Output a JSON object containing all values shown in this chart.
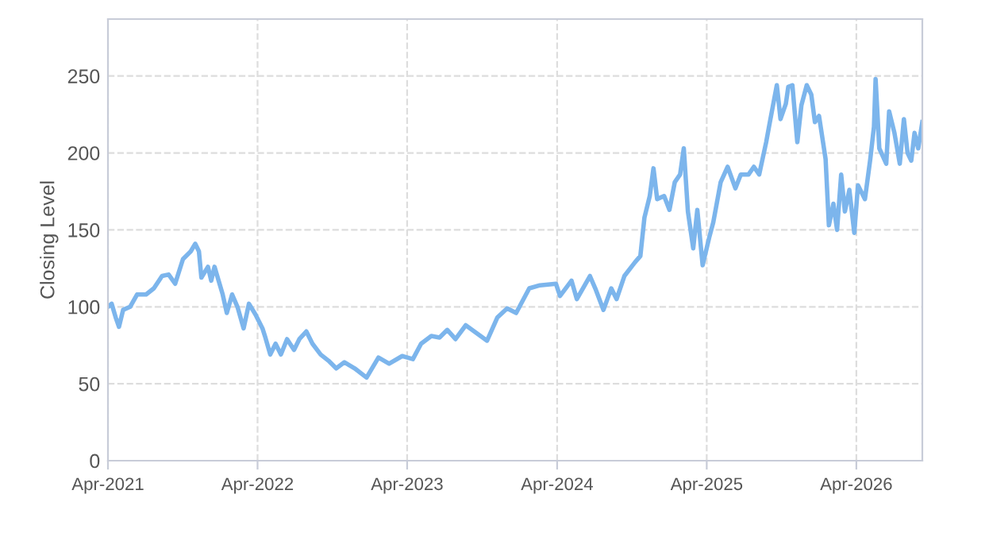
{
  "chart_data": {
    "type": "line",
    "ylabel": "Closing Level",
    "xlim": [
      "2021-04-01",
      "2026-09-09"
    ],
    "xticks": [
      {
        "value": "2021-04-01",
        "label": "Apr-2021"
      },
      {
        "value": "2022-04-01",
        "label": "Apr-2022"
      },
      {
        "value": "2023-04-01",
        "label": "Apr-2023"
      },
      {
        "value": "2024-04-01",
        "label": "Apr-2024"
      },
      {
        "value": "2025-04-01",
        "label": "Apr-2025"
      },
      {
        "value": "2026-04-01",
        "label": "Apr-2026"
      }
    ],
    "ylim": [
      0,
      287
    ],
    "yticks": [
      0,
      50,
      100,
      150,
      200,
      250
    ],
    "grid": true,
    "legend": false,
    "marker": "none",
    "line_style": "solid",
    "x": [
      "2021-04-01",
      "2021-04-10",
      "2021-04-20",
      "2021-04-28",
      "2021-05-08",
      "2021-05-25",
      "2021-06-11",
      "2021-07-03",
      "2021-07-22",
      "2021-08-11",
      "2021-08-27",
      "2021-09-12",
      "2021-10-01",
      "2021-10-20",
      "2021-10-31",
      "2021-11-09",
      "2021-11-15",
      "2021-12-01",
      "2021-12-09",
      "2021-12-17",
      "2022-01-06",
      "2022-01-16",
      "2022-01-29",
      "2022-02-11",
      "2022-02-26",
      "2022-03-11",
      "2022-03-27",
      "2022-04-13",
      "2022-04-19",
      "2022-05-02",
      "2022-05-15",
      "2022-05-28",
      "2022-06-12",
      "2022-06-29",
      "2022-07-12",
      "2022-07-29",
      "2022-08-13",
      "2022-09-02",
      "2022-09-21",
      "2022-10-10",
      "2022-10-30",
      "2022-11-24",
      "2022-12-23",
      "2023-01-21",
      "2023-02-16",
      "2023-03-20",
      "2023-04-15",
      "2023-05-05",
      "2023-05-30",
      "2023-06-19",
      "2023-07-08",
      "2023-07-28",
      "2023-08-22",
      "2023-09-17",
      "2023-10-13",
      "2023-11-07",
      "2023-12-01",
      "2023-12-23",
      "2024-01-24",
      "2024-02-19",
      "2024-03-29",
      "2024-04-08",
      "2024-05-06",
      "2024-05-19",
      "2024-06-20",
      "2024-07-03",
      "2024-07-23",
      "2024-08-11",
      "2024-08-24",
      "2024-09-12",
      "2024-10-08",
      "2024-10-21",
      "2024-10-31",
      "2024-11-13",
      "2024-11-22",
      "2024-12-01",
      "2024-12-18",
      "2024-12-31",
      "2025-01-13",
      "2025-01-26",
      "2025-02-04",
      "2025-02-14",
      "2025-02-27",
      "2025-03-09",
      "2025-03-22",
      "2025-04-07",
      "2025-04-17",
      "2025-05-05",
      "2025-05-22",
      "2025-06-10",
      "2025-06-23",
      "2025-07-12",
      "2025-07-25",
      "2025-08-07",
      "2025-08-24",
      "2025-09-02",
      "2025-09-19",
      "2025-09-28",
      "2025-10-11",
      "2025-10-17",
      "2025-10-27",
      "2025-11-08",
      "2025-11-18",
      "2025-12-01",
      "2025-12-12",
      "2025-12-21",
      "2025-12-31",
      "2026-01-16",
      "2026-01-24",
      "2026-02-04",
      "2026-02-13",
      "2026-02-23",
      "2026-03-04",
      "2026-03-15",
      "2026-03-27",
      "2026-04-05",
      "2026-04-22",
      "2026-05-05",
      "2026-05-14",
      "2026-05-18",
      "2026-05-27",
      "2026-06-13",
      "2026-06-20",
      "2026-07-03",
      "2026-07-16",
      "2026-07-26",
      "2026-08-04",
      "2026-08-13",
      "2026-08-21",
      "2026-08-30",
      "2026-09-09"
    ],
    "series": [
      {
        "color": "#7cb5ec",
        "values": [
          100,
          102,
          93,
          87,
          98,
          100,
          108,
          108,
          112,
          120,
          121,
          115,
          131,
          136,
          141,
          136,
          119,
          126,
          117,
          126,
          108,
          96,
          108,
          100,
          86,
          102,
          95,
          86,
          81,
          69,
          76,
          69,
          79,
          72,
          79,
          84,
          76,
          69,
          65,
          60,
          64,
          60,
          54,
          67,
          63,
          68,
          66,
          76,
          81,
          80,
          85,
          79,
          88,
          83,
          78,
          93,
          99,
          96,
          112,
          114,
          115,
          107,
          117,
          105,
          120,
          112,
          98,
          112,
          105,
          120,
          129,
          133,
          158,
          172,
          190,
          170,
          172,
          163,
          181,
          186,
          203,
          162,
          138,
          163,
          127,
          145,
          155,
          181,
          191,
          177,
          186,
          186,
          191,
          186,
          207,
          220,
          244,
          222,
          232,
          243,
          244,
          207,
          231,
          244,
          238,
          220,
          224,
          196,
          153,
          167,
          150,
          186,
          162,
          176,
          148,
          179,
          170,
          196,
          217,
          248,
          203,
          193,
          227,
          213,
          193,
          222,
          200,
          195,
          213,
          203,
          220
        ]
      }
    ]
  }
}
